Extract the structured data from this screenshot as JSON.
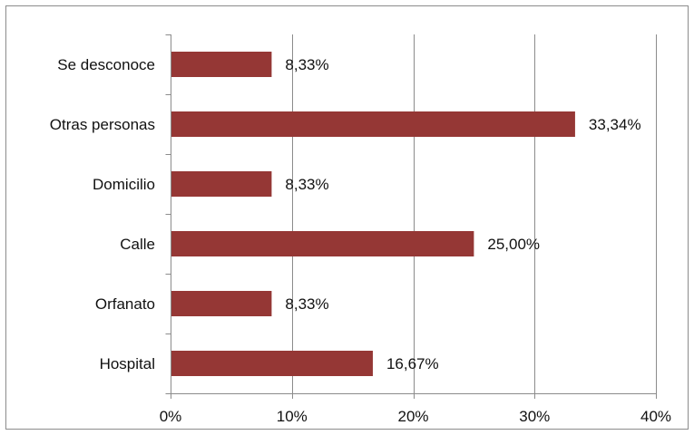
{
  "chart_data": {
    "type": "bar",
    "orientation": "horizontal",
    "categories": [
      "Se desconoce",
      "Otras personas",
      "Domicilio",
      "Calle",
      "Orfanato",
      "Hospital"
    ],
    "values": [
      8.33,
      33.34,
      8.33,
      25.0,
      8.33,
      16.67
    ],
    "data_labels": [
      "8,33%",
      "33,34%",
      "8,33%",
      "25,00%",
      "8,33%",
      "16,67%"
    ],
    "title": "",
    "xlabel": "",
    "ylabel": "",
    "xlim": [
      0,
      40
    ],
    "x_ticks": [
      0,
      10,
      20,
      30,
      40
    ],
    "x_tick_labels": [
      "0%",
      "10%",
      "20%",
      "30%",
      "40%"
    ],
    "grid": "vertical",
    "legend": "none",
    "colors": {
      "bar": "#953735",
      "grid": "#8c8c8c",
      "axis": "#8c8c8c",
      "border": "#8c8c8c"
    }
  }
}
